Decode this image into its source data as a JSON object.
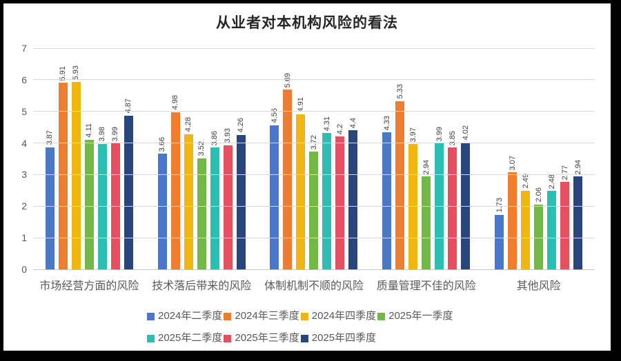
{
  "chart_data": {
    "type": "bar",
    "title": "从业者对本机构风险的看法",
    "xlabel": "",
    "ylabel": "",
    "ylim": [
      0,
      7
    ],
    "yticks": [
      0,
      1,
      2,
      3,
      4,
      5,
      6,
      7
    ],
    "grid": true,
    "legend_position": "bottom",
    "legend_rows": [
      4,
      3
    ],
    "data_labels": "rotated-vertical",
    "categories": [
      "市场经营方面的风险",
      "技术落后带来的风险",
      "体制机制不顺的风险",
      "质量管理不佳的风险",
      "其他风险"
    ],
    "series": [
      {
        "name": "2024年二季度",
        "color": "#4a78c8",
        "values": [
          3.87,
          3.66,
          4.56,
          4.33,
          1.73
        ]
      },
      {
        "name": "2024年三季度",
        "color": "#ed7d31",
        "values": [
          5.91,
          4.98,
          5.69,
          5.33,
          3.07
        ]
      },
      {
        "name": "2024年四季度",
        "color": "#efb510",
        "values": [
          5.93,
          4.28,
          4.91,
          3.97,
          2.49
        ]
      },
      {
        "name": "2025年一季度",
        "color": "#71b944",
        "values": [
          4.11,
          3.52,
          3.72,
          2.94,
          2.06
        ]
      },
      {
        "name": "2025年二季度",
        "color": "#2fbcb3",
        "values": [
          3.98,
          3.86,
          4.31,
          3.99,
          2.48
        ]
      },
      {
        "name": "2025年三季度",
        "color": "#e25160",
        "values": [
          3.99,
          3.93,
          4.2,
          3.85,
          2.77
        ]
      },
      {
        "name": "2025年四季度",
        "color": "#28457c",
        "values": [
          4.87,
          4.26,
          4.4,
          4.02,
          2.94
        ]
      }
    ],
    "colors": {
      "gridline": "#d9d9d9",
      "baseline": "#c6c6c6",
      "axis_text": "#595959",
      "data_label_text": "#404040",
      "title_text": "#262626",
      "frame": "#000000",
      "background": "#ffffff"
    }
  }
}
